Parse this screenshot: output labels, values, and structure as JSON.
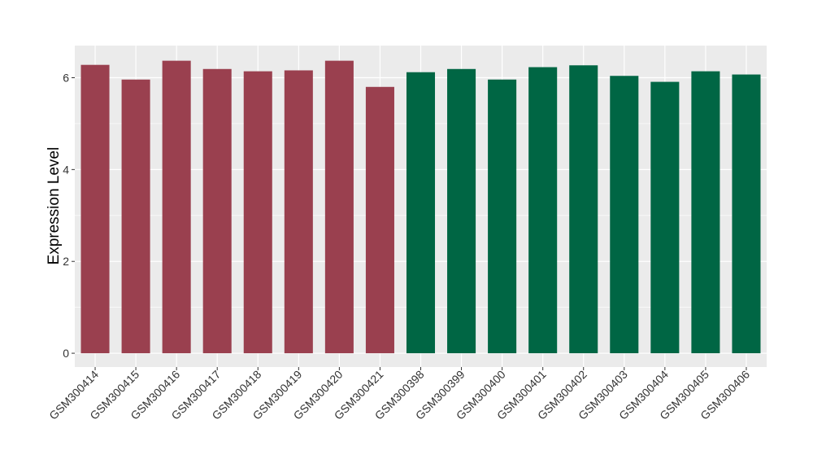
{
  "chart_data": {
    "type": "bar",
    "title": "",
    "xlabel": "",
    "ylabel": "Expression Level",
    "ylim": [
      -0.3,
      6.7
    ],
    "yticks": [
      0,
      2,
      4,
      6
    ],
    "grid": true,
    "categories": [
      "GSM300414",
      "GSM300415",
      "GSM300416",
      "GSM300417",
      "GSM300418",
      "GSM300419",
      "GSM300420",
      "GSM300421",
      "GSM300398",
      "GSM300399",
      "GSM300400",
      "GSM300401",
      "GSM300402",
      "GSM300403",
      "GSM300404",
      "GSM300405",
      "GSM300406"
    ],
    "values": [
      6.28,
      5.96,
      6.37,
      6.19,
      6.14,
      6.16,
      6.37,
      5.8,
      6.12,
      6.19,
      5.96,
      6.23,
      6.27,
      6.04,
      5.91,
      6.14,
      6.07
    ],
    "groups": [
      "a",
      "a",
      "a",
      "a",
      "a",
      "a",
      "a",
      "a",
      "b",
      "b",
      "b",
      "b",
      "b",
      "b",
      "b",
      "b",
      "b"
    ],
    "colors": {
      "a": "#9a404f",
      "b": "#006644"
    },
    "panel_background": "#ebebeb",
    "gridline_color": "#ffffff"
  }
}
